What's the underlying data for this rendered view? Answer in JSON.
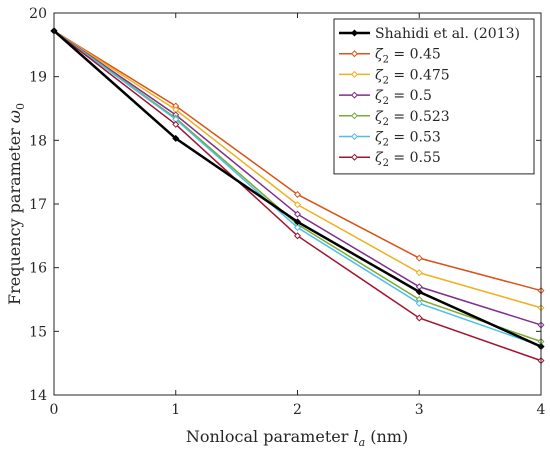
{
  "chart_data": {
    "type": "line",
    "xlabel": "Nonlocal parameter l_a (nm)",
    "ylabel": "Frequency parameter ω_0",
    "xlim": [
      0,
      4
    ],
    "ylim": [
      14,
      20
    ],
    "x_ticks": [
      0,
      1,
      2,
      3,
      4
    ],
    "y_ticks": [
      14,
      15,
      16,
      17,
      18,
      19,
      20
    ],
    "grid": false,
    "legend_position": "top-right",
    "series": [
      {
        "name": "Shahidi et al. (2013)",
        "label_main": "Shahidi et al. (2013)",
        "color": "#000000",
        "bold": true,
        "x": [
          0,
          1,
          2,
          3,
          4
        ],
        "y": [
          19.72,
          18.03,
          16.72,
          15.62,
          14.76
        ]
      },
      {
        "name": "ζ2 = 0.45",
        "label_main": "ζ",
        "label_sub": "2",
        "label_rest": " = 0.45",
        "color": "#D95319",
        "x": [
          0,
          1,
          2,
          3,
          4
        ],
        "y": [
          19.72,
          18.54,
          17.15,
          16.15,
          15.64
        ]
      },
      {
        "name": "ζ2 = 0.475",
        "label_main": "ζ",
        "label_sub": "2",
        "label_rest": " = 0.475",
        "color": "#EDB120",
        "x": [
          0,
          1,
          2,
          3,
          4
        ],
        "y": [
          19.72,
          18.48,
          16.99,
          15.92,
          15.37
        ]
      },
      {
        "name": "ζ2 = 0.5",
        "label_main": "ζ",
        "label_sub": "2",
        "label_rest": " = 0.5",
        "color": "#7E2F8E",
        "x": [
          0,
          1,
          2,
          3,
          4
        ],
        "y": [
          19.72,
          18.4,
          16.84,
          15.7,
          15.1
        ]
      },
      {
        "name": "ζ2 = 0.523",
        "label_main": "ζ",
        "label_sub": "2",
        "label_rest": " = 0.523",
        "color": "#77AC30",
        "x": [
          0,
          1,
          2,
          3,
          4
        ],
        "y": [
          19.72,
          18.35,
          16.68,
          15.5,
          14.84
        ]
      },
      {
        "name": "ζ2 = 0.53",
        "label_main": "ζ",
        "label_sub": "2",
        "label_rest": " = 0.53",
        "color": "#4DBEEE",
        "x": [
          0,
          1,
          2,
          3,
          4
        ],
        "y": [
          19.72,
          18.33,
          16.63,
          15.44,
          14.77
        ]
      },
      {
        "name": "ζ2 = 0.55",
        "label_main": "ζ",
        "label_sub": "2",
        "label_rest": " = 0.55",
        "color": "#A2142F",
        "x": [
          0,
          1,
          2,
          3,
          4
        ],
        "y": [
          19.72,
          18.25,
          16.5,
          15.21,
          14.54
        ]
      }
    ]
  }
}
